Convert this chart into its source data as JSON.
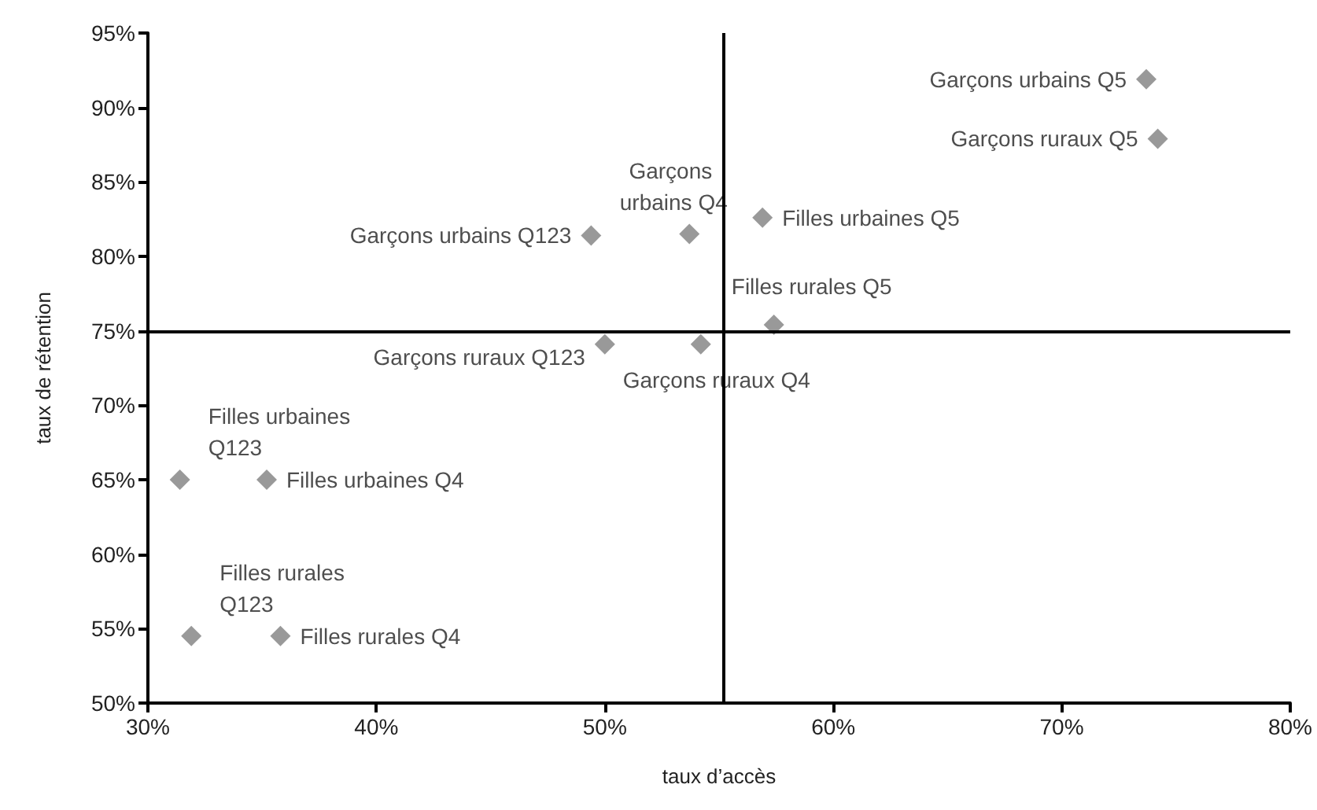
{
  "chart_data": {
    "type": "scatter",
    "xlabel": "taux d’accès",
    "ylabel": "taux de rétention",
    "x": [
      73.7,
      74.2,
      56.9,
      49.4,
      53.7,
      57.4,
      50.0,
      54.2,
      31.4,
      35.2,
      31.9,
      35.8
    ],
    "series": [
      {
        "color": "#7f7f7f",
        "values": [
          91.9,
          87.9,
          82.6,
          81.4,
          81.5,
          75.4,
          74.1,
          74.1,
          65.0,
          65.0,
          54.5,
          54.5
        ]
      }
    ],
    "marker": "diamond",
    "grid": false,
    "xlim": [
      30,
      80
    ],
    "xticks": [
      {
        "value": 30,
        "label": "30%"
      },
      {
        "value": 40,
        "label": "40%"
      },
      {
        "value": 50,
        "label": "50%"
      },
      {
        "value": 60,
        "label": "60%"
      },
      {
        "value": 70,
        "label": "70%"
      },
      {
        "value": 80,
        "label": "80%"
      }
    ],
    "ylim": [
      50,
      95
    ],
    "yticks": [
      {
        "value": 50,
        "label": "50%"
      },
      {
        "value": 55,
        "label": "55%"
      },
      {
        "value": 60,
        "label": "60%"
      },
      {
        "value": 65,
        "label": "65%"
      },
      {
        "value": 70,
        "label": "70%"
      },
      {
        "value": 75,
        "label": "75%"
      },
      {
        "value": 80,
        "label": "80%"
      },
      {
        "value": 85,
        "label": "85%"
      },
      {
        "value": 90,
        "label": "90%"
      },
      {
        "value": 95,
        "label": "95%"
      }
    ],
    "ref_lines": [
      {
        "axis": "y",
        "value": 75,
        "color": "#000000"
      },
      {
        "axis": "x",
        "value": 55.2,
        "color": "#000000"
      }
    ],
    "annotations": [
      {
        "text": "Garçons urbains Q5",
        "x": 73.7,
        "y": 91.9
      },
      {
        "text": "Garçons ruraux Q5",
        "x": 74.2,
        "y": 87.9
      },
      {
        "text": "Filles urbaines Q5",
        "x": 56.9,
        "y": 82.6
      },
      {
        "text": "Garçons urbains Q123",
        "x": 49.4,
        "y": 81.4
      },
      {
        "text": "Garçons urbains Q4",
        "x": 53.7,
        "y": 81.5
      },
      {
        "text": "Filles rurales Q5",
        "x": 57.4,
        "y": 75.4
      },
      {
        "text": "Garçons ruraux Q123",
        "x": 50.0,
        "y": 74.1
      },
      {
        "text": "Garçons ruraux Q4",
        "x": 54.2,
        "y": 74.1
      },
      {
        "text": "Filles urbaines Q123",
        "x": 31.4,
        "y": 65.0
      },
      {
        "text": "Filles urbaines Q4",
        "x": 35.2,
        "y": 65.0
      },
      {
        "text": "Filles rurales Q123",
        "x": 31.9,
        "y": 54.5
      },
      {
        "text": "Filles rurales Q4",
        "x": 35.8,
        "y": 54.5
      }
    ]
  }
}
